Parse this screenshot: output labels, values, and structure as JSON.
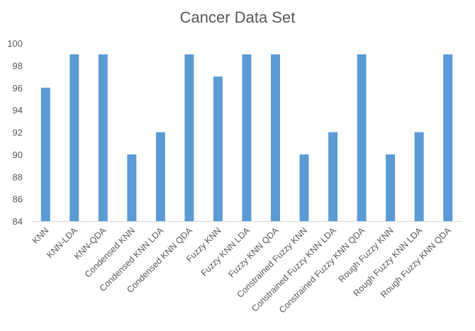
{
  "chart_data": {
    "type": "bar",
    "title": "Cancer Data Set",
    "xlabel": "",
    "ylabel": "",
    "ylim": [
      84,
      100
    ],
    "yticks": [
      84,
      86,
      88,
      90,
      92,
      94,
      96,
      98,
      100
    ],
    "grid": false,
    "legend": "none",
    "bar_color": "#5B9BD5",
    "categories": [
      "KNN",
      "KNN-LDA",
      "KNN-QDA",
      "Condensed KNN",
      "Condensed KNN LDA",
      "Condensed KNN QDA",
      "Fuzzy KNN",
      "Fuzzy KNN LDA",
      "Fuzzy KNN QDA",
      "Constrained Fuzzy KNN",
      "Constrained Fuzzy KNN LDA",
      "Constrained Fuzzy KNN QDA",
      "Rough Fuzzy KNN",
      "Rough Fuzzy KNN LDA",
      "Rough Fuzzy KNN QDA"
    ],
    "values": [
      96,
      99,
      99,
      90,
      92,
      99,
      97,
      99,
      99,
      90,
      92,
      99,
      90,
      92,
      99
    ]
  }
}
